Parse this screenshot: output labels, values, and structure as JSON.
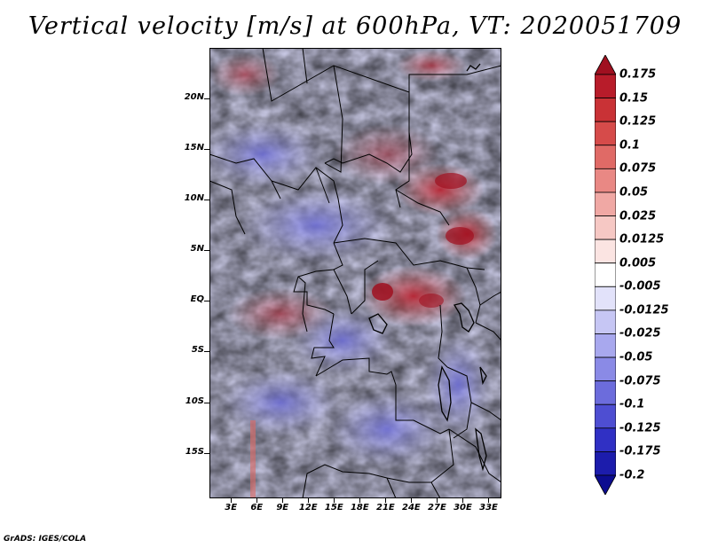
{
  "title": "Vertical velocity [m/s] at 600hPa, VT: 2020051709",
  "credit": "GrADS: IGES/COLA",
  "map": {
    "lat_labels": [
      "20N",
      "15N",
      "10N",
      "5N",
      "EQ",
      "5S",
      "10S",
      "15S"
    ],
    "lat_values": [
      20,
      15,
      10,
      5,
      0,
      -5,
      -10,
      -15
    ],
    "lon_labels": [
      "3E",
      "6E",
      "9E",
      "12E",
      "15E",
      "18E",
      "21E",
      "24E",
      "27E",
      "30E",
      "33E"
    ],
    "lon_values": [
      3,
      6,
      9,
      12,
      15,
      18,
      21,
      24,
      27,
      30,
      33
    ],
    "lat_range": [
      -19.5,
      25
    ],
    "lon_range": [
      0.5,
      34.5
    ]
  },
  "colorbar": {
    "labels": [
      "0.175",
      "0.15",
      "0.125",
      "0.1",
      "0.075",
      "0.05",
      "0.025",
      "0.0125",
      "0.005",
      "-0.005",
      "-0.0125",
      "-0.025",
      "-0.05",
      "-0.075",
      "-0.1",
      "-0.125",
      "-0.175",
      "-0.2"
    ],
    "colors": [
      "#a01020",
      "#b81c2a",
      "#c93236",
      "#d64b4a",
      "#e06a66",
      "#e98884",
      "#f0a8a4",
      "#f6c8c4",
      "#fbe4e2",
      "#ffffff",
      "#e2e2fa",
      "#c6c6f4",
      "#a8a8ee",
      "#8a8ae6",
      "#6c6cdc",
      "#4e4ed2",
      "#3030c4",
      "#1c1cac",
      "#0c0c90"
    ]
  }
}
